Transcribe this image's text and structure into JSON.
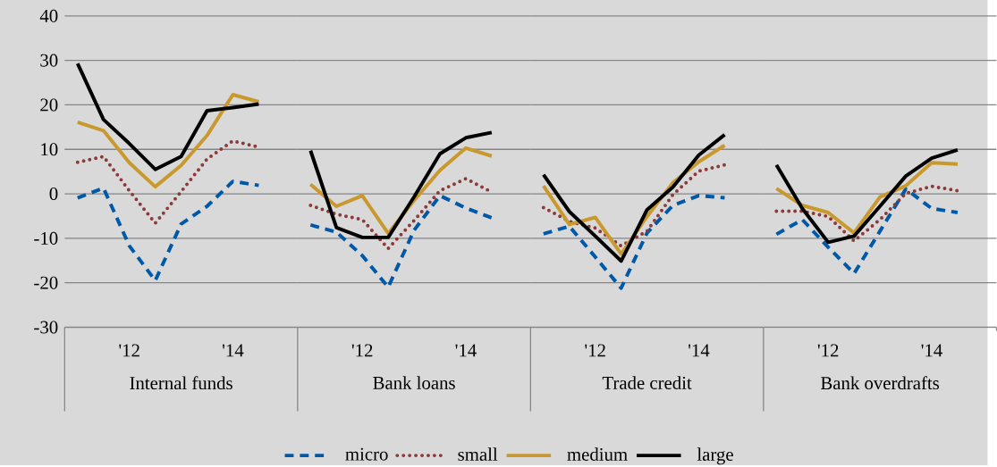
{
  "chart_data": [
    {
      "type": "line",
      "xlabel": "Internal funds",
      "categories": [
        null,
        null,
        "'12",
        null,
        null,
        null,
        "'14",
        null,
        null
      ],
      "ylim": [
        -30,
        40
      ],
      "yticks": [
        -30,
        -20,
        -10,
        0,
        10,
        20,
        30,
        40
      ],
      "grid": "y",
      "legend": "bottom",
      "marker": "none",
      "series": [
        {
          "name": "micro",
          "color": "#0058a8",
          "line_style": "dashed",
          "values": [
            -0.9,
            1.3,
            -11.7,
            -19.5,
            -6.8,
            -2.8,
            2.8,
            1.9,
            null
          ]
        },
        {
          "name": "small",
          "color": "#8b3a3a",
          "line_style": "dotted",
          "values": [
            7.1,
            8.4,
            0.7,
            -6.6,
            0.5,
            7.8,
            11.9,
            10.5,
            null
          ]
        },
        {
          "name": "medium",
          "color": "#c9992e",
          "line_style": "solid",
          "values": [
            16.1,
            14.2,
            7.0,
            1.6,
            6.4,
            13.1,
            22.3,
            20.7,
            null
          ]
        },
        {
          "name": "large",
          "color": "#000000",
          "line_style": "solid",
          "values": [
            29.3,
            16.7,
            11.3,
            5.5,
            8.4,
            18.7,
            19.4,
            20.2,
            null
          ]
        }
      ]
    },
    {
      "type": "line",
      "xlabel": "Bank loans",
      "categories": [
        null,
        null,
        "'12",
        null,
        null,
        null,
        "'14",
        null,
        null
      ],
      "ylim": [
        -30,
        40
      ],
      "yticks": [
        -30,
        -20,
        -10,
        0,
        10,
        20,
        30,
        40
      ],
      "grid": "y",
      "tick_labels": "x",
      "marker": "none",
      "series": [
        {
          "color": "#0058a8",
          "line_style": "dashed",
          "values": [
            -7.0,
            -8.6,
            -13.9,
            -21.0,
            -8.2,
            -0.4,
            -3.2,
            -5.4,
            null
          ]
        },
        {
          "color": "#8b3a3a",
          "line_style": "dotted",
          "values": [
            -2.6,
            -4.6,
            -5.8,
            -12.3,
            -6.0,
            0.7,
            3.4,
            0.4,
            null
          ]
        },
        {
          "color": "#c9992e",
          "line_style": "solid",
          "values": [
            2.1,
            -2.8,
            -0.4,
            -8.9,
            -1.5,
            5.3,
            10.3,
            8.5,
            null
          ]
        },
        {
          "color": "#000000",
          "line_style": "solid",
          "values": [
            9.7,
            -7.6,
            -9.8,
            -9.8,
            -0.7,
            9.0,
            12.6,
            13.8,
            null
          ]
        }
      ]
    },
    {
      "type": "line",
      "xlabel": "Trade credit",
      "categories": [
        null,
        null,
        "'12",
        null,
        null,
        null,
        "'14",
        null,
        null
      ],
      "ylim": [
        -30,
        40
      ],
      "yticks": [
        -30,
        -20,
        -10,
        0,
        10,
        20,
        30,
        40
      ],
      "grid": "y",
      "tick_labels": "x",
      "marker": "none",
      "series": [
        {
          "color": "#0058a8",
          "line_style": "dashed",
          "values": [
            -9.0,
            -7.3,
            -14.2,
            -21.2,
            -8.8,
            -2.6,
            -0.4,
            -0.9,
            null
          ]
        },
        {
          "color": "#8b3a3a",
          "line_style": "dotted",
          "values": [
            -3.1,
            -6.2,
            -7.7,
            -11.7,
            -8.4,
            -0.2,
            5.1,
            6.5,
            null
          ]
        },
        {
          "color": "#c9992e",
          "line_style": "solid",
          "values": [
            1.8,
            -6.9,
            -5.3,
            -13.5,
            -5.1,
            2.5,
            7.2,
            10.9,
            null
          ]
        },
        {
          "color": "#000000",
          "line_style": "solid",
          "values": [
            4.3,
            -4.0,
            -9.5,
            -15.1,
            -3.6,
            1.5,
            8.7,
            13.3,
            null
          ]
        }
      ]
    },
    {
      "type": "line",
      "xlabel": "Bank overdrafts",
      "categories": [
        null,
        null,
        "'12",
        null,
        null,
        null,
        "'14",
        null,
        null
      ],
      "ylim": [
        -30,
        40
      ],
      "yticks": [
        -30,
        -20,
        -10,
        0,
        10,
        20,
        30,
        40
      ],
      "grid": "y",
      "tick_labels": "x",
      "marker": "none",
      "series": [
        {
          "color": "#0058a8",
          "line_style": "dashed",
          "values": [
            -9.1,
            -5.8,
            -12.0,
            -17.9,
            -8.4,
            1.1,
            -3.3,
            -4.2,
            null
          ]
        },
        {
          "color": "#8b3a3a",
          "line_style": "dotted",
          "values": [
            -3.9,
            -3.9,
            -5.1,
            -10.6,
            -5.8,
            0.1,
            1.7,
            0.7,
            null
          ]
        },
        {
          "color": "#c9992e",
          "line_style": "solid",
          "values": [
            1.2,
            -2.6,
            -4.2,
            -8.8,
            -0.7,
            1.8,
            7.0,
            6.7,
            null
          ]
        },
        {
          "color": "#000000",
          "line_style": "solid",
          "values": [
            6.5,
            -3.3,
            -10.9,
            -9.5,
            -2.8,
            4.0,
            8.0,
            9.9,
            null
          ]
        }
      ]
    }
  ]
}
